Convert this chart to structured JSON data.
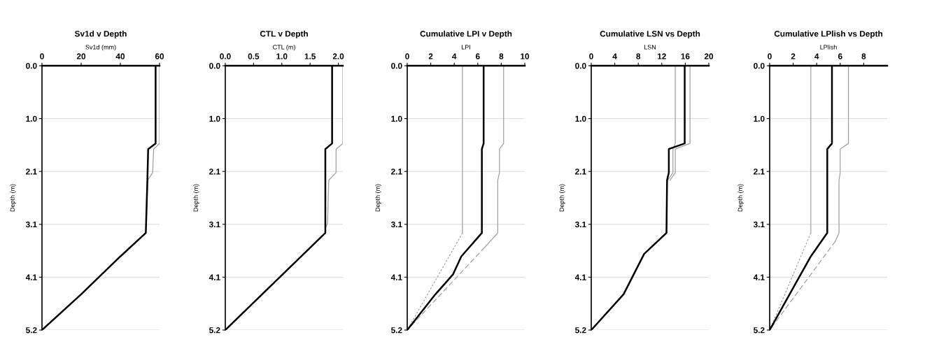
{
  "chart_data": [
    {
      "type": "line",
      "orientation": "horizontal",
      "title": "Sv1d v Depth",
      "xlabel": "Sv1d (mm)",
      "ylabel": "Depth (m)",
      "xlim": [
        0,
        60
      ],
      "xticks": [
        0,
        20,
        40,
        60
      ],
      "ylim": [
        5.17,
        0
      ],
      "yticks": [
        {
          "value": 0,
          "label": "0.0"
        },
        {
          "value": 1.034,
          "label": "1.0"
        },
        {
          "value": 2.068,
          "label": "2.1"
        },
        {
          "value": 3.102,
          "label": "3.1"
        },
        {
          "value": 4.136,
          "label": "4.1"
        },
        {
          "value": 5.17,
          "label": "5.2"
        }
      ],
      "grid": "y",
      "series": [
        {
          "color": "#a0a0a0",
          "line_style": "solid",
          "x": [
            0,
            1.52,
            1.63,
            2.09,
            2.24,
            3.27
          ],
          "values": [
            60,
            60,
            57,
            56.5,
            54,
            53
          ]
        },
        {
          "color": "#000000",
          "line_style": "solid",
          "x": [
            0,
            1.52,
            1.63,
            2.24,
            3.27,
            3.73,
            4.47,
            5.17
          ],
          "values": [
            58,
            58,
            54.2,
            53.8,
            53,
            40,
            20,
            0
          ]
        }
      ]
    },
    {
      "type": "line",
      "orientation": "horizontal",
      "title": "CTL v Depth",
      "xlabel": "CTL (m)",
      "ylabel": "Depth (m)",
      "xlim": [
        0,
        2.08
      ],
      "xticks": [
        {
          "value": 0,
          "label": "0.0"
        },
        0.5,
        {
          "value": 1,
          "label": "1.0"
        },
        1.5,
        {
          "value": 2,
          "label": "2.0"
        }
      ],
      "ylim": [
        5.17,
        0
      ],
      "yticks": [
        {
          "value": 0,
          "label": "0.0"
        },
        {
          "value": 1.034,
          "label": "1.0"
        },
        {
          "value": 2.068,
          "label": "2.1"
        },
        {
          "value": 3.102,
          "label": "3.1"
        },
        {
          "value": 4.136,
          "label": "4.1"
        },
        {
          "value": 5.17,
          "label": "5.2"
        }
      ],
      "grid": "y",
      "series": [
        {
          "color": "#a0a0a0",
          "line_style": "solid",
          "x": [
            0,
            1.52,
            1.63,
            2.09,
            2.24,
            3.08,
            3.18
          ],
          "values": [
            2.08,
            2.08,
            1.96,
            1.96,
            1.83,
            1.81,
            1.77
          ]
        },
        {
          "color": "#000000",
          "line_style": "solid",
          "x": [
            0,
            1.52,
            1.63,
            3.27,
            5.17
          ],
          "values": [
            1.89,
            1.89,
            1.77,
            1.77,
            0
          ]
        }
      ]
    },
    {
      "type": "line",
      "orientation": "horizontal",
      "title": "Cumulative LPI v Depth",
      "xlabel": "LPI",
      "ylabel": "Depth (m)",
      "xlim": [
        0,
        10
      ],
      "xticks": [
        0,
        2,
        4,
        6,
        8,
        10
      ],
      "ylim": [
        5.17,
        0
      ],
      "yticks": [
        {
          "value": 0,
          "label": "0.0"
        },
        {
          "value": 1.034,
          "label": "1.0"
        },
        {
          "value": 2.068,
          "label": "2.1"
        },
        {
          "value": 3.102,
          "label": "3.1"
        },
        {
          "value": 4.136,
          "label": "4.1"
        },
        {
          "value": 5.17,
          "label": "5.2"
        }
      ],
      "grid": "y",
      "series": [
        {
          "color": "#a0a0a0",
          "line_style": "solid",
          "x": [
            0,
            3.27
          ],
          "values": [
            4.7,
            4.7
          ]
        },
        {
          "color": "#a0a0a0",
          "line_style": "dotted",
          "x": [
            3.27,
            5.17
          ],
          "values": [
            4.7,
            0
          ]
        },
        {
          "color": "#a0a0a0",
          "line_style": "solid",
          "x": [
            0,
            1.52,
            1.63,
            2.09,
            2.24,
            3.27,
            3.55
          ],
          "values": [
            8.2,
            8.2,
            7.85,
            7.85,
            7.7,
            7.7,
            6.6
          ]
        },
        {
          "color": "#a0a0a0",
          "line_style": "dashed",
          "x": [
            3.55,
            5.17
          ],
          "values": [
            6.6,
            0
          ]
        },
        {
          "color": "#000000",
          "line_style": "solid",
          "x": [
            0,
            1.52,
            1.63,
            3.27,
            3.73,
            4.08,
            4.47,
            5.17
          ],
          "values": [
            6.5,
            6.5,
            6.35,
            6.35,
            4.6,
            3.9,
            2.4,
            0
          ]
        }
      ]
    },
    {
      "type": "line",
      "orientation": "horizontal",
      "title": "Cumulative LSN vs Depth",
      "xlabel": "LSN",
      "ylabel": "Depth (m)",
      "xlim": [
        0,
        20
      ],
      "xticks": [
        0,
        4,
        8,
        12,
        16,
        20
      ],
      "ylim": [
        5.17,
        0
      ],
      "yticks": [
        {
          "value": 0,
          "label": "0.0"
        },
        {
          "value": 1.034,
          "label": "1.0"
        },
        {
          "value": 2.068,
          "label": "2.1"
        },
        {
          "value": 3.102,
          "label": "3.1"
        },
        {
          "value": 4.136,
          "label": "4.1"
        },
        {
          "value": 5.17,
          "label": "5.2"
        }
      ],
      "grid": "y",
      "series": [
        {
          "color": "#a0a0a0",
          "line_style": "solid",
          "x": [
            0,
            1.52,
            1.63,
            2.09,
            2.24
          ],
          "values": [
            14.3,
            14.3,
            13.9,
            13.9,
            13
          ]
        },
        {
          "color": "#a0a0a0",
          "line_style": "solid",
          "x": [
            0,
            1.52,
            1.63,
            2.09,
            2.24
          ],
          "values": [
            16.8,
            16.8,
            14.3,
            14.3,
            13.4
          ]
        },
        {
          "color": "#000000",
          "line_style": "solid",
          "x": [
            0,
            1.52,
            1.63,
            2.09,
            2.24,
            3.27,
            3.68,
            4.47,
            5.17
          ],
          "values": [
            15.9,
            15.9,
            13.2,
            13.2,
            12.9,
            12.8,
            9,
            5.5,
            0
          ]
        }
      ]
    },
    {
      "type": "line",
      "orientation": "horizontal",
      "title": "Cumulative LPlish vs Depth",
      "xlabel": "LPlish",
      "ylabel": "Depth (m)",
      "xlim": [
        0,
        10
      ],
      "xticks": [
        0,
        2,
        4,
        6,
        8
      ],
      "ylim": [
        5.17,
        0
      ],
      "yticks": [
        {
          "value": 0,
          "label": "0.0"
        },
        {
          "value": 1.034,
          "label": "1.0"
        },
        {
          "value": 2.068,
          "label": "2.1"
        },
        {
          "value": 3.102,
          "label": "3.1"
        },
        {
          "value": 4.136,
          "label": "4.1"
        },
        {
          "value": 5.17,
          "label": "5.2"
        }
      ],
      "grid": "y",
      "series": [
        {
          "color": "#a0a0a0",
          "line_style": "solid",
          "x": [
            0,
            3.27
          ],
          "values": [
            3.5,
            3.5
          ]
        },
        {
          "color": "#a0a0a0",
          "line_style": "dotted",
          "x": [
            3.27,
            5.17
          ],
          "values": [
            3.5,
            0
          ]
        },
        {
          "color": "#a0a0a0",
          "line_style": "solid",
          "x": [
            0,
            1.52,
            1.63,
            2.09,
            2.24,
            3.27,
            3.43
          ],
          "values": [
            6.7,
            6.7,
            6.0,
            6.0,
            5.9,
            5.9,
            5.6
          ]
        },
        {
          "color": "#a0a0a0",
          "line_style": "dashed",
          "x": [
            3.43,
            5.17
          ],
          "values": [
            5.6,
            0
          ]
        },
        {
          "color": "#000000",
          "line_style": "solid",
          "x": [
            0,
            1.52,
            1.63,
            3.27,
            3.73,
            4.18,
            5.17
          ],
          "values": [
            5.3,
            5.3,
            4.9,
            4.9,
            3.5,
            2.4,
            0
          ]
        }
      ]
    }
  ]
}
